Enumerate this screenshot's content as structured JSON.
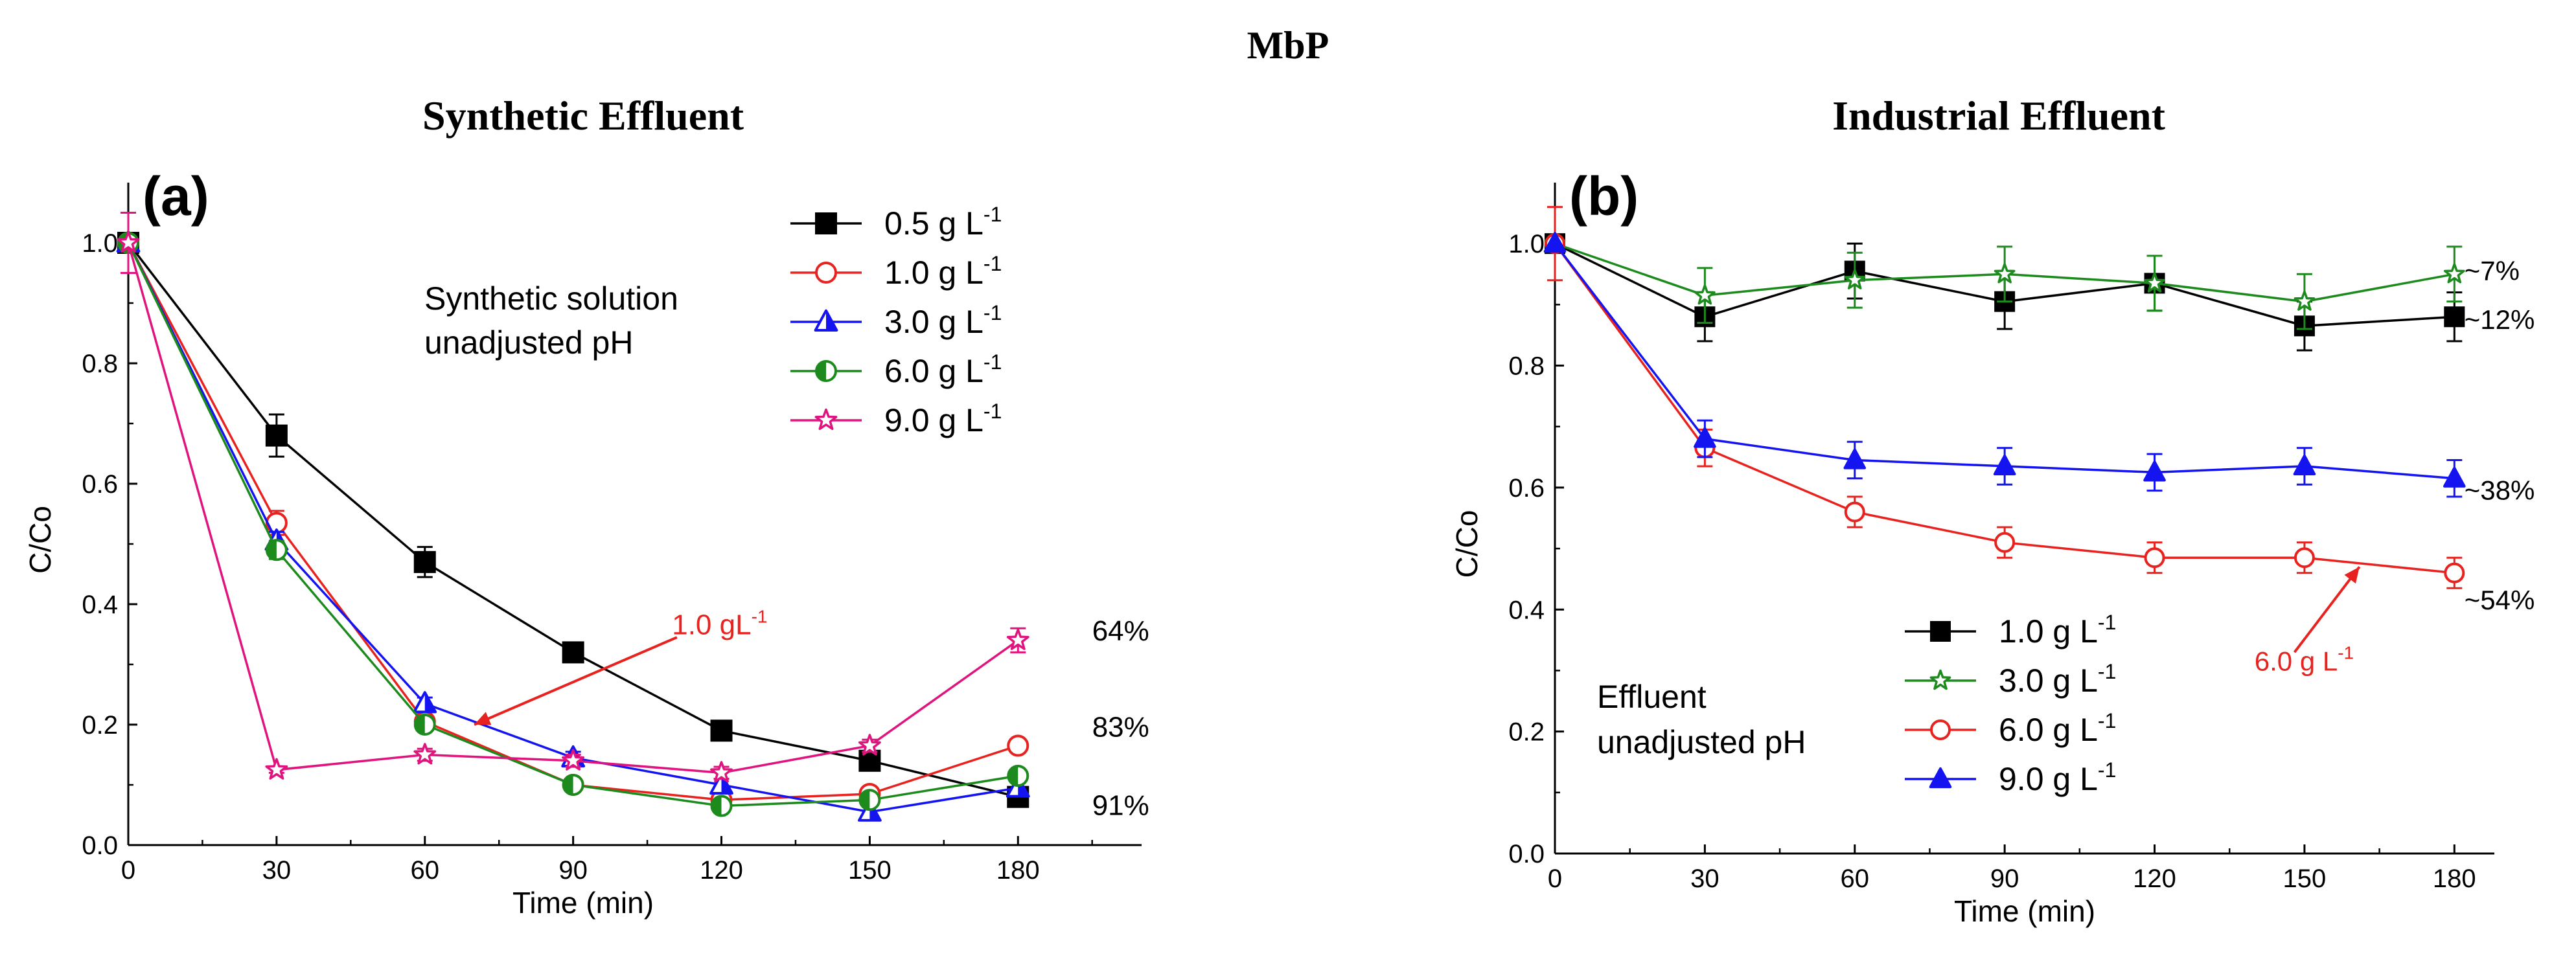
{
  "figure_title": "MbP",
  "chart_data": [
    {
      "type": "line",
      "panel_label": "(a)",
      "title": "Synthetic Effluent",
      "xlabel": "Time (min)",
      "ylabel": "C/Co",
      "xlim": [
        0,
        205
      ],
      "ylim": [
        0,
        1.1
      ],
      "x_ticks": [
        0,
        30,
        60,
        90,
        120,
        150,
        180
      ],
      "y_ticks": [
        0.0,
        0.2,
        0.4,
        0.6,
        0.8,
        1.0
      ],
      "x_tick_labels": [
        "0",
        "30",
        "60",
        "90",
        "120",
        "150",
        "180"
      ],
      "y_tick_labels": [
        "0.0",
        "0.2",
        "0.4",
        "0.6",
        "0.8",
        "1.0"
      ],
      "condition_text": [
        "Synthetic solution",
        "unadjusted pH"
      ],
      "legend_unit": "g L",
      "legend_exponent": "-1",
      "series": [
        {
          "name": "0.5",
          "color": "#000000",
          "marker": "square",
          "fill": "filled",
          "x": [
            0,
            30,
            60,
            90,
            120,
            150,
            180
          ],
          "values": [
            1.0,
            0.68,
            0.47,
            0.32,
            0.19,
            0.14,
            0.08
          ],
          "errors": [
            0.0,
            0.035,
            0.025,
            0.015,
            0.01,
            0.01,
            0.01
          ]
        },
        {
          "name": "1.0",
          "color": "#e8231f",
          "marker": "circle",
          "fill": "open",
          "x": [
            0,
            30,
            60,
            90,
            120,
            150,
            180
          ],
          "values": [
            1.0,
            0.535,
            0.205,
            0.1,
            0.075,
            0.085,
            0.165
          ],
          "errors": [
            0.0,
            0.02,
            0.01,
            0.01,
            0.01,
            0.01,
            0.01
          ]
        },
        {
          "name": "3.0",
          "color": "#1414f0",
          "marker": "triangle",
          "fill": "half",
          "x": [
            0,
            30,
            60,
            90,
            120,
            150,
            180
          ],
          "values": [
            1.0,
            0.505,
            0.235,
            0.145,
            0.1,
            0.055,
            0.095
          ],
          "errors": [
            0.0,
            0.015,
            0.01,
            0.01,
            0.01,
            0.01,
            0.01
          ]
        },
        {
          "name": "6.0",
          "color": "#1c8a1c",
          "marker": "circle",
          "fill": "half",
          "x": [
            0,
            30,
            60,
            90,
            120,
            150,
            180
          ],
          "values": [
            1.0,
            0.49,
            0.2,
            0.1,
            0.065,
            0.075,
            0.115
          ],
          "errors": [
            0.0,
            0.015,
            0.01,
            0.01,
            0.01,
            0.01,
            0.01
          ]
        },
        {
          "name": "9.0",
          "color": "#e0147e",
          "marker": "star",
          "fill": "open",
          "x": [
            0,
            30,
            60,
            90,
            120,
            150,
            180
          ],
          "values": [
            1.0,
            0.125,
            0.15,
            0.14,
            0.12,
            0.165,
            0.34
          ],
          "errors": [
            0.05,
            0.005,
            0.01,
            0.01,
            0.01,
            0.01,
            0.02
          ]
        }
      ],
      "annotations": [
        {
          "text": "64%",
          "x": 195,
          "y": 0.355,
          "color": "#000000"
        },
        {
          "text": "83%",
          "x": 195,
          "y": 0.195,
          "color": "#000000"
        },
        {
          "text": "91%",
          "x": 195,
          "y": 0.065,
          "color": "#000000"
        },
        {
          "text": "1.0 gL",
          "sup": "-1",
          "x": 110,
          "y": 0.365,
          "color": "#e8231f"
        }
      ],
      "arrow": {
        "from": [
          111,
          0.345
        ],
        "to": [
          70,
          0.2
        ],
        "color": "#e8231f"
      }
    },
    {
      "type": "line",
      "panel_label": "(b)",
      "title": "Industrial Effluent",
      "xlabel": "Time (min)",
      "ylabel": "C/Co",
      "xlim": [
        0,
        188
      ],
      "ylim": [
        0,
        1.1
      ],
      "x_ticks": [
        0,
        30,
        60,
        90,
        120,
        150,
        180
      ],
      "y_ticks": [
        0.0,
        0.2,
        0.4,
        0.6,
        0.8,
        1.0
      ],
      "x_tick_labels": [
        "0",
        "30",
        "60",
        "90",
        "120",
        "150",
        "180"
      ],
      "y_tick_labels": [
        "0.0",
        "0.2",
        "0.4",
        "0.6",
        "0.8",
        "1.0"
      ],
      "condition_text": [
        "Effluent",
        "unadjusted pH"
      ],
      "legend_unit": "g L",
      "legend_exponent": "-1",
      "series": [
        {
          "name": "1.0",
          "color": "#000000",
          "marker": "square",
          "fill": "filled",
          "x": [
            0,
            30,
            60,
            90,
            120,
            150,
            180
          ],
          "values": [
            1.0,
            0.88,
            0.955,
            0.905,
            0.935,
            0.865,
            0.88
          ],
          "errors": [
            0.0,
            0.04,
            0.045,
            0.045,
            0.045,
            0.04,
            0.04
          ]
        },
        {
          "name": "3.0",
          "color": "#1c8a1c",
          "marker": "star",
          "fill": "open",
          "x": [
            0,
            30,
            60,
            90,
            120,
            150,
            180
          ],
          "values": [
            1.0,
            0.915,
            0.94,
            0.95,
            0.935,
            0.905,
            0.95
          ],
          "errors": [
            0.0,
            0.045,
            0.045,
            0.045,
            0.045,
            0.045,
            0.045
          ]
        },
        {
          "name": "6.0",
          "color": "#e8231f",
          "marker": "circle",
          "fill": "open",
          "x": [
            0,
            30,
            60,
            90,
            120,
            150,
            180
          ],
          "values": [
            1.0,
            0.665,
            0.56,
            0.51,
            0.485,
            0.485,
            0.46
          ],
          "errors": [
            0.06,
            0.03,
            0.025,
            0.025,
            0.025,
            0.025,
            0.025
          ]
        },
        {
          "name": "9.0",
          "color": "#1414f0",
          "marker": "triangle",
          "fill": "filled",
          "x": [
            0,
            30,
            60,
            90,
            120,
            150,
            180
          ],
          "values": [
            1.0,
            0.68,
            0.645,
            0.635,
            0.625,
            0.635,
            0.615
          ],
          "errors": [
            0.0,
            0.03,
            0.03,
            0.03,
            0.03,
            0.03,
            0.03
          ]
        }
      ],
      "annotations": [
        {
          "text": "~7%",
          "x": 182,
          "y": 0.955,
          "color": "#000000"
        },
        {
          "text": "~12%",
          "x": 182,
          "y": 0.875,
          "color": "#000000"
        },
        {
          "text": "~38%",
          "x": 182,
          "y": 0.595,
          "color": "#000000"
        },
        {
          "text": "~54%",
          "x": 182,
          "y": 0.415,
          "color": "#000000"
        },
        {
          "text": "6.0 g L",
          "sup": "-1",
          "x": 140,
          "y": 0.315,
          "color": "#e8231f"
        }
      ],
      "arrow": {
        "from": [
          148,
          0.33
        ],
        "to": [
          161,
          0.47
        ],
        "color": "#e8231f"
      }
    }
  ]
}
